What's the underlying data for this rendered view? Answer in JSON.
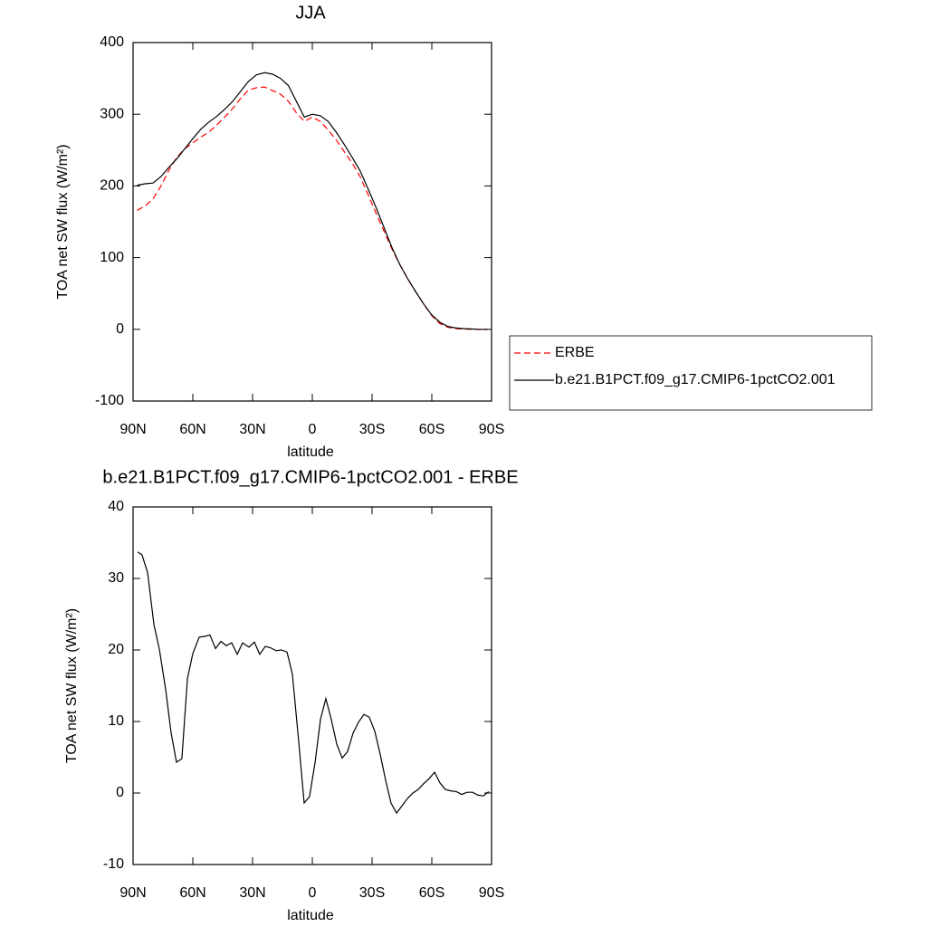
{
  "chart_data": [
    {
      "type": "line",
      "title": "JJA",
      "xlabel": "latitude",
      "ylabel": "TOA net SW flux (W/m²)",
      "x": [
        88,
        84,
        80,
        76,
        72,
        68,
        64,
        60,
        56,
        52,
        48,
        44,
        40,
        36,
        32,
        28,
        24,
        20,
        16,
        12,
        8,
        4,
        0,
        -4,
        -8,
        -12,
        -16,
        -20,
        -24,
        -28,
        -32,
        -36,
        -40,
        -44,
        -48,
        -52,
        -56,
        -60,
        -64,
        -68,
        -72,
        -76,
        -80,
        -84,
        -88
      ],
      "series": [
        {
          "name": "ERBE",
          "color": "#ff0000",
          "linestyle": "dashed",
          "values": [
            166,
            172,
            182,
            200,
            222,
            240,
            252,
            260,
            268,
            275,
            285,
            296,
            308,
            322,
            334,
            337,
            338,
            333,
            328,
            318,
            302,
            290,
            296,
            290,
            278,
            264,
            248,
            232,
            213,
            188,
            162,
            137,
            112,
            90,
            70,
            52,
            35,
            19,
            8,
            3,
            1,
            0.5,
            0,
            0,
            0
          ]
        },
        {
          "name": "b.e21.B1PCT.f09_g17.CMIP6-1pctCO2.001",
          "color": "#000000",
          "linestyle": "solid",
          "values": [
            201,
            203,
            204,
            213,
            226,
            238,
            252,
            266,
            279,
            289,
            297,
            307,
            318,
            332,
            346,
            355,
            358,
            356,
            350,
            340,
            318,
            296,
            300,
            298,
            290,
            275,
            258,
            240,
            221,
            196,
            170,
            142,
            114,
            90,
            70,
            52,
            35,
            20,
            10,
            4,
            2,
            1,
            0.5,
            0,
            0
          ]
        }
      ],
      "xlim": [
        90,
        -90
      ],
      "xticks": [
        {
          "value": 90,
          "label": "90N"
        },
        {
          "value": 60,
          "label": "60N"
        },
        {
          "value": 30,
          "label": "30N"
        },
        0,
        {
          "value": -30,
          "label": "30S"
        },
        {
          "value": -60,
          "label": "60S"
        },
        {
          "value": -90,
          "label": "90S"
        }
      ],
      "ylim": [
        -100,
        400
      ],
      "yticks": [
        -100,
        0,
        100,
        200,
        300,
        400
      ],
      "legend": "right"
    },
    {
      "type": "line",
      "title": "b.e21.B1PCT.f09_g17.CMIP6-1pctCO2.001 - ERBE",
      "xlabel": "latitude",
      "ylabel": "TOA net SW flux (W/m²)",
      "x": [
        87.7,
        85.5,
        82.7,
        79.5,
        76.8,
        73.6,
        70.9,
        68.2,
        65.5,
        62.7,
        60,
        56.8,
        54.1,
        51.4,
        48.6,
        45.9,
        43.2,
        40.5,
        37.7,
        35,
        31.8,
        29.1,
        26.4,
        23.6,
        20.9,
        18.2,
        15.5,
        12.7,
        10,
        6.8,
        4.1,
        1.4,
        -1.4,
        -4.1,
        -6.8,
        -9.5,
        -12.3,
        -15,
        -17.7,
        -20.5,
        -23.2,
        -25.9,
        -28.6,
        -31.4,
        -34.1,
        -36.8,
        -39.5,
        -42.3,
        -45,
        -47.7,
        -50.5,
        -53.2,
        -55.9,
        -58.6,
        -61.4,
        -64.1,
        -66.8,
        -69.5,
        -72.3,
        -75,
        -77.7,
        -80.5,
        -83.2,
        -85.9,
        -88.6
      ],
      "series": [
        {
          "name": "b.e21.B1PCT.f09_g17.CMIP6-1pctCO2.001 - ERBE",
          "color": "#000000",
          "linestyle": "solid",
          "values": [
            33.7,
            33.3,
            30.8,
            23.5,
            20.1,
            14.4,
            8.4,
            4.3,
            4.8,
            16,
            19.5,
            21.8,
            21.9,
            22.1,
            20.2,
            21.2,
            20.6,
            21,
            19.4,
            21,
            20.4,
            21.1,
            19.4,
            20.5,
            20.3,
            19.9,
            20,
            19.7,
            16.6,
            7.1,
            -1.4,
            -0.5,
            4.3,
            10.3,
            13.2,
            10.3,
            6.8,
            4.9,
            5.8,
            8.4,
            9.9,
            11,
            10.6,
            8.6,
            5.4,
            1.8,
            -1.4,
            -2.8,
            -1.8,
            -0.8,
            0,
            0.5,
            1.3,
            2,
            2.9,
            1.4,
            0.5,
            0.3,
            0.2,
            -0.2,
            0.1,
            0.1,
            -0.3,
            -0.4,
            0.2
          ]
        }
      ],
      "xlim": [
        90,
        -90
      ],
      "xticks": [
        {
          "value": 90,
          "label": "90N"
        },
        {
          "value": 60,
          "label": "60N"
        },
        {
          "value": 30,
          "label": "30N"
        },
        0,
        {
          "value": -30,
          "label": "30S"
        },
        {
          "value": -60,
          "label": "60S"
        },
        {
          "value": -90,
          "label": "90S"
        }
      ],
      "ylim": [
        -10,
        40
      ],
      "yticks": [
        -10,
        0,
        10,
        20,
        30,
        40
      ]
    }
  ]
}
